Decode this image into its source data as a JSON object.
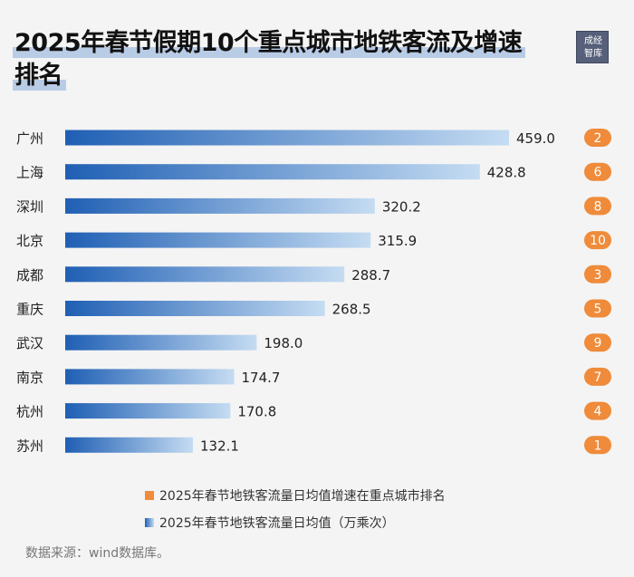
{
  "title": {
    "line1": "2025年春节假期10个重点城市地铁客流及增速",
    "line2": "排名"
  },
  "logo": {
    "line1": "成经",
    "line2": "智库"
  },
  "colors": {
    "bar_start": "#1f5fb4",
    "bar_end": "#c5dcf2",
    "rank_badge": "#ef8b3a"
  },
  "chart_data": {
    "type": "bar",
    "orientation": "horizontal",
    "categories": [
      "广州",
      "上海",
      "深圳",
      "北京",
      "成都",
      "重庆",
      "武汉",
      "南京",
      "杭州",
      "苏州"
    ],
    "series": [
      {
        "name": "2025年春节地铁客流量日均值（万乘次）",
        "values": [
          459.0,
          428.8,
          320.2,
          315.9,
          288.7,
          268.5,
          198.0,
          174.7,
          170.8,
          132.1
        ]
      },
      {
        "name": "2025年春节地铁客流量日均值增速在重点城市排名",
        "values": [
          2,
          6,
          8,
          10,
          3,
          5,
          9,
          7,
          4,
          1
        ]
      }
    ],
    "value_labels": [
      "459.0",
      "428.8",
      "320.2",
      "315.9",
      "288.7",
      "268.5",
      "198.0",
      "174.7",
      "170.8",
      "132.1"
    ],
    "xlim": [
      0,
      459.0
    ],
    "grid": false,
    "legend_position": "bottom"
  },
  "legend": {
    "rank": "2025年春节地铁客流量日均值增速在重点城市排名",
    "volume": "2025年春节地铁客流量日均值（万乘次）"
  },
  "source": "数据来源：wind数据库。"
}
